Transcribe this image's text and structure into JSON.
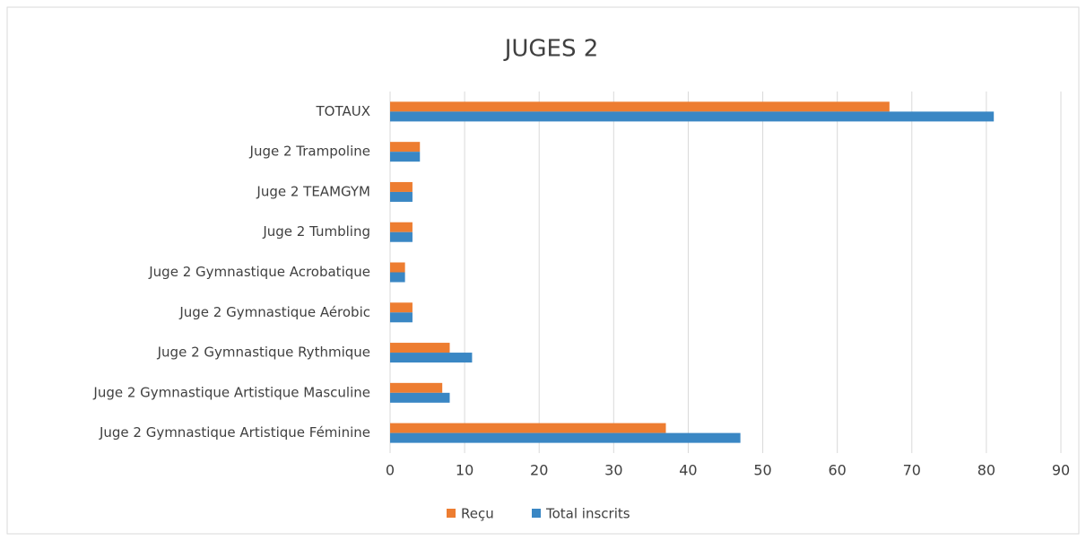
{
  "chart_data": {
    "type": "bar",
    "orientation": "horizontal",
    "title": "JUGES 2",
    "categories": [
      "TOTAUX",
      "Juge 2 Trampoline",
      "Juge 2 TEAMGYM",
      "Juge 2 Tumbling",
      "Juge 2 Gymnastique Acrobatique",
      "Juge 2 Gymnastique Aérobic",
      "Juge 2 Gymnastique Rythmique",
      "Juge 2 Gymnastique Artistique Masculine",
      "Juge 2 Gymnastique Artistique Féminine"
    ],
    "series": [
      {
        "name": "Reçu",
        "color": "#ed7d31",
        "values": [
          67,
          4,
          3,
          3,
          2,
          3,
          8,
          7,
          37
        ]
      },
      {
        "name": "Total inscrits",
        "color": "#3a87c4",
        "values": [
          81,
          4,
          3,
          3,
          2,
          3,
          11,
          8,
          47
        ]
      }
    ],
    "xlim": [
      0,
      90
    ],
    "xticks": [
      0,
      10,
      20,
      30,
      40,
      50,
      60,
      70,
      80,
      90
    ],
    "grid": true,
    "legend": "bottom"
  }
}
